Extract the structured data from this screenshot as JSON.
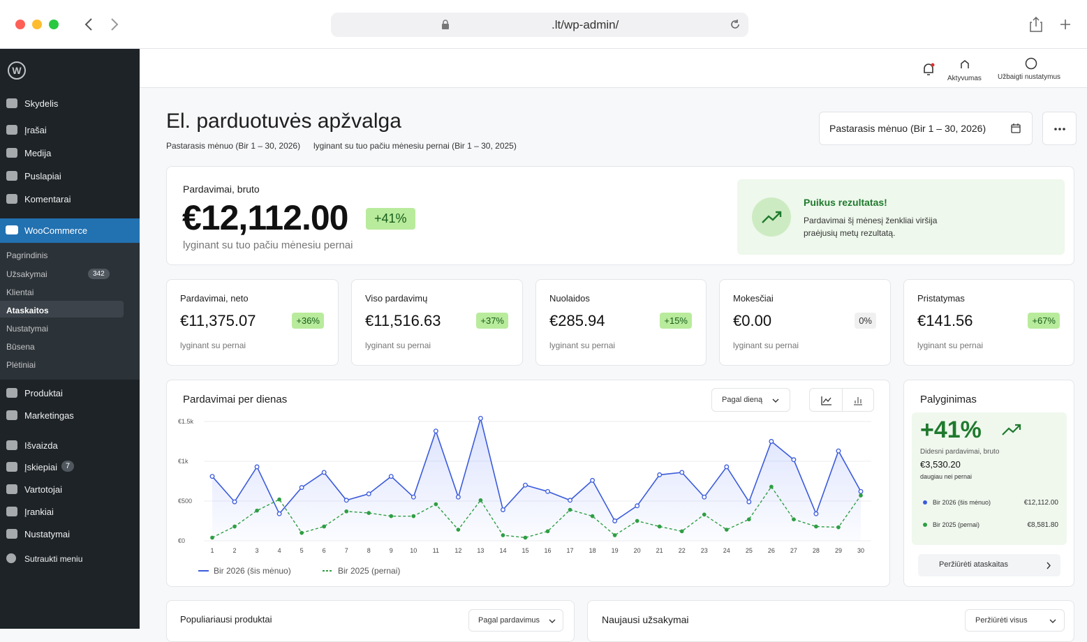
{
  "browser": {
    "url": ".lt/wp-admin/"
  },
  "sidebar": {
    "menu_top": [
      "Skydelis",
      "Įrašai",
      "Medija",
      "Puslapiai",
      "Komentarai"
    ],
    "woocommerce": "WooCommerce",
    "submenu": [
      "Pagrindinis",
      "Užsakymai",
      "Klientai",
      "Ataskaitos",
      "Nustatymai",
      "Būsena",
      "Plėtiniai"
    ],
    "orders_badge": 342,
    "menu_bottom": [
      "Produktai",
      "Marketingas",
      "Išvaizda",
      "Įskiepiai",
      "Vartotojai",
      "Įrankiai",
      "Nustatymai"
    ],
    "plugins_badge": 7,
    "collapse": "Sutraukti meniu"
  },
  "topbar": {
    "activity": "Aktyvumas",
    "finish_setup": "Užbaigti nustatymus"
  },
  "header": {
    "title": "El. parduotuvės apžvalga",
    "period": "Pastarasis mėnuo (Bir 1 – 30, 2026)",
    "comparison": "lyginant su tuo pačiu mėnesiu pernai (Bir 1 – 30, 2025)",
    "date_button": "Pastarasis mėnuo (Bir 1 – 30, 2026)"
  },
  "hero": {
    "label": "Pardavimai, bruto",
    "value": "€12,112.00",
    "change": "+41%",
    "note": "lyginant su tuo pačiu mėnesiu pernai",
    "callout_title": "Puikus rezultatas!",
    "callout_text": "Pardavimai šį mėnesį ženkliai viršija praėjusių metų rezultatą."
  },
  "kpis": [
    {
      "label": "Pardavimai, neto",
      "value": "€11,375.07",
      "change": "+36%",
      "note": "lyginant su pernai"
    },
    {
      "label": "Viso pardavimų",
      "value": "€11,516.63",
      "change": "+37%",
      "note": "lyginant su pernai"
    },
    {
      "label": "Nuolaidos",
      "value": "€285.94",
      "change": "+15%",
      "note": "lyginant su pernai"
    },
    {
      "label": "Mokesčiai",
      "value": "€0.00",
      "change": "0%",
      "note": "lyginant su pernai"
    },
    {
      "label": "Pristatymas",
      "value": "€141.56",
      "change": "+67%",
      "note": "lyginant su pernai"
    }
  ],
  "chart_controls": {
    "group_by": "Pagal dieną"
  },
  "chart_data": {
    "type": "line",
    "title": "Pardavimai per dienas",
    "x": [
      1,
      2,
      3,
      4,
      5,
      6,
      7,
      8,
      9,
      10,
      11,
      12,
      13,
      14,
      15,
      16,
      17,
      18,
      19,
      20,
      21,
      22,
      23,
      24,
      25,
      26,
      27,
      28,
      29,
      30
    ],
    "xlim": [
      1,
      30
    ],
    "series": [
      {
        "name": "Bir 2026 (šis mėnuo)",
        "color": "#3b5bdb",
        "values": [
          810,
          490,
          930,
          340,
          670,
          860,
          510,
          590,
          810,
          550,
          1380,
          550,
          1540,
          390,
          700,
          620,
          510,
          760,
          250,
          440,
          830,
          860,
          550,
          930,
          490,
          1250,
          1020,
          340,
          1130,
          620
        ]
      },
      {
        "name": "Bir 2025 (pernai)",
        "color": "#2f9e44",
        "dashed": true,
        "values": [
          40,
          180,
          380,
          520,
          100,
          180,
          370,
          350,
          310,
          310,
          460,
          140,
          510,
          70,
          40,
          120,
          390,
          310,
          70,
          250,
          180,
          120,
          330,
          140,
          270,
          680,
          270,
          180,
          170,
          570
        ]
      }
    ],
    "ylim": [
      0,
      1550
    ],
    "yticks": [
      {
        "value": 0,
        "label": "€0"
      },
      {
        "value": 500,
        "label": "€500"
      },
      {
        "value": 1000,
        "label": "€1k"
      },
      {
        "value": 1500,
        "label": "€1.5k"
      }
    ],
    "grid": true
  },
  "comparison": {
    "title": "Palyginimas",
    "change": "+41%",
    "caption": "Didesni pardavimai, bruto",
    "difference": "€3,530.20",
    "difference_note": "daugiau nei pernai",
    "totals": [
      "€12,112.00",
      "€8,581.80"
    ],
    "button": "Peržiūrėti ataskaitas"
  },
  "bottom": {
    "products_title": "Populiariausi produktai",
    "products_sort": "Pagal pardavimus",
    "orders_title": "Naujausi užsakymai",
    "orders_link": "Peržiūrėti visus"
  }
}
